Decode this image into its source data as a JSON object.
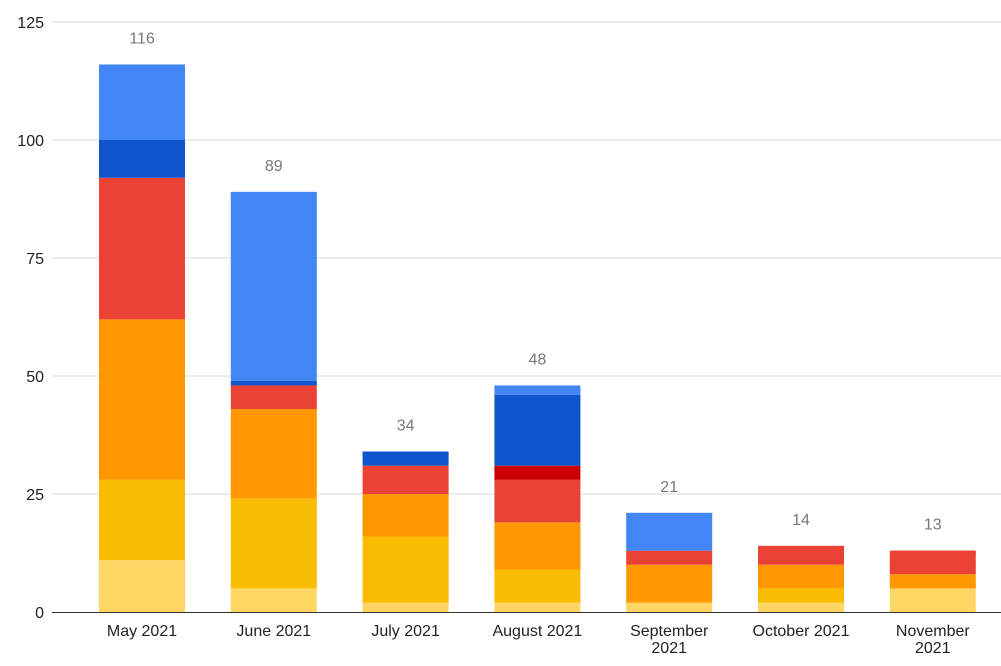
{
  "chart_data": {
    "type": "bar",
    "stacked": true,
    "categories": [
      "May 2021",
      "June 2021",
      "July 2021",
      "August 2021",
      "September 2021",
      "October 2021",
      "November 2021"
    ],
    "category_labels": [
      [
        "May 2021"
      ],
      [
        "June 2021"
      ],
      [
        "July 2021"
      ],
      [
        "August 2021"
      ],
      [
        "September",
        "2021"
      ],
      [
        "October 2021"
      ],
      [
        "November",
        "2021"
      ]
    ],
    "series": [
      {
        "color": "#fdd663",
        "values": [
          11,
          5,
          2,
          2,
          2,
          2,
          5
        ]
      },
      {
        "color": "#fbbc04",
        "values": [
          17,
          19,
          14,
          7,
          0,
          3,
          0
        ]
      },
      {
        "color": "#ff9800",
        "values": [
          34,
          19,
          9,
          10,
          8,
          5,
          3
        ]
      },
      {
        "color": "#ea4335",
        "values": [
          30,
          5,
          6,
          9,
          3,
          4,
          5
        ]
      },
      {
        "color": "#cc0000",
        "values": [
          0,
          0,
          0,
          3,
          0,
          0,
          0
        ]
      },
      {
        "color": "#1155cc",
        "values": [
          8,
          1,
          3,
          15,
          0,
          0,
          0
        ]
      },
      {
        "color": "#4285f4",
        "values": [
          16,
          40,
          0,
          2,
          8,
          0,
          0
        ]
      }
    ],
    "totals": [
      116,
      89,
      34,
      48,
      21,
      14,
      13
    ],
    "ylim": [
      0,
      125
    ],
    "yticks": [
      0,
      25,
      50,
      75,
      100,
      125
    ],
    "grid": true,
    "title": "",
    "xlabel": "",
    "ylabel": ""
  }
}
